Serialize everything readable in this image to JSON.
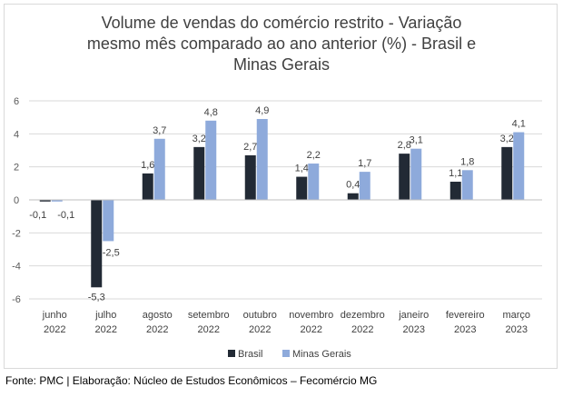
{
  "chart_data": {
    "type": "bar",
    "title_lines": [
      "Volume de vendas do comércio restrito - Variação",
      "mesmo mês comparado ao ano anterior (%) - Brasil e",
      "Minas Gerais"
    ],
    "categories": [
      [
        "junho",
        "2022"
      ],
      [
        "julho",
        "2022"
      ],
      [
        "agosto",
        "2022"
      ],
      [
        "setembro",
        "2022"
      ],
      [
        "outubro",
        "2022"
      ],
      [
        "novembro",
        "2022"
      ],
      [
        "dezembro",
        "2022"
      ],
      [
        "janeiro",
        "2023"
      ],
      [
        "fevereiro",
        "2023"
      ],
      [
        "março",
        "2023"
      ]
    ],
    "series": [
      {
        "name": "Brasil",
        "color": "#222a35",
        "values": [
          -0.1,
          -5.3,
          1.6,
          3.2,
          2.7,
          1.4,
          0.4,
          2.8,
          1.1,
          3.2
        ],
        "labels": [
          "-0,1",
          "-5,3",
          "1,6",
          "3,2",
          "2,7",
          "1,4",
          "0,4",
          "2,8",
          "1,1",
          "3,2"
        ]
      },
      {
        "name": "Minas Gerais",
        "color": "#8eaadb",
        "values": [
          -0.1,
          -2.5,
          3.7,
          4.8,
          4.9,
          2.2,
          1.7,
          3.1,
          1.8,
          4.1
        ],
        "labels": [
          "-0,1",
          "-2,5",
          "3,7",
          "4,8",
          "4,9",
          "2,2",
          "1,7",
          "3,1",
          "1,8",
          "4,1"
        ]
      }
    ],
    "yticks": [
      6,
      4,
      2,
      0,
      -2,
      -4,
      -6
    ],
    "ylim": [
      -6,
      6
    ],
    "grid": true,
    "legend": "bottom"
  },
  "footer": "Fonte: PMC | Elaboração: Núcleo de Estudos Econômicos – Fecomércio MG"
}
